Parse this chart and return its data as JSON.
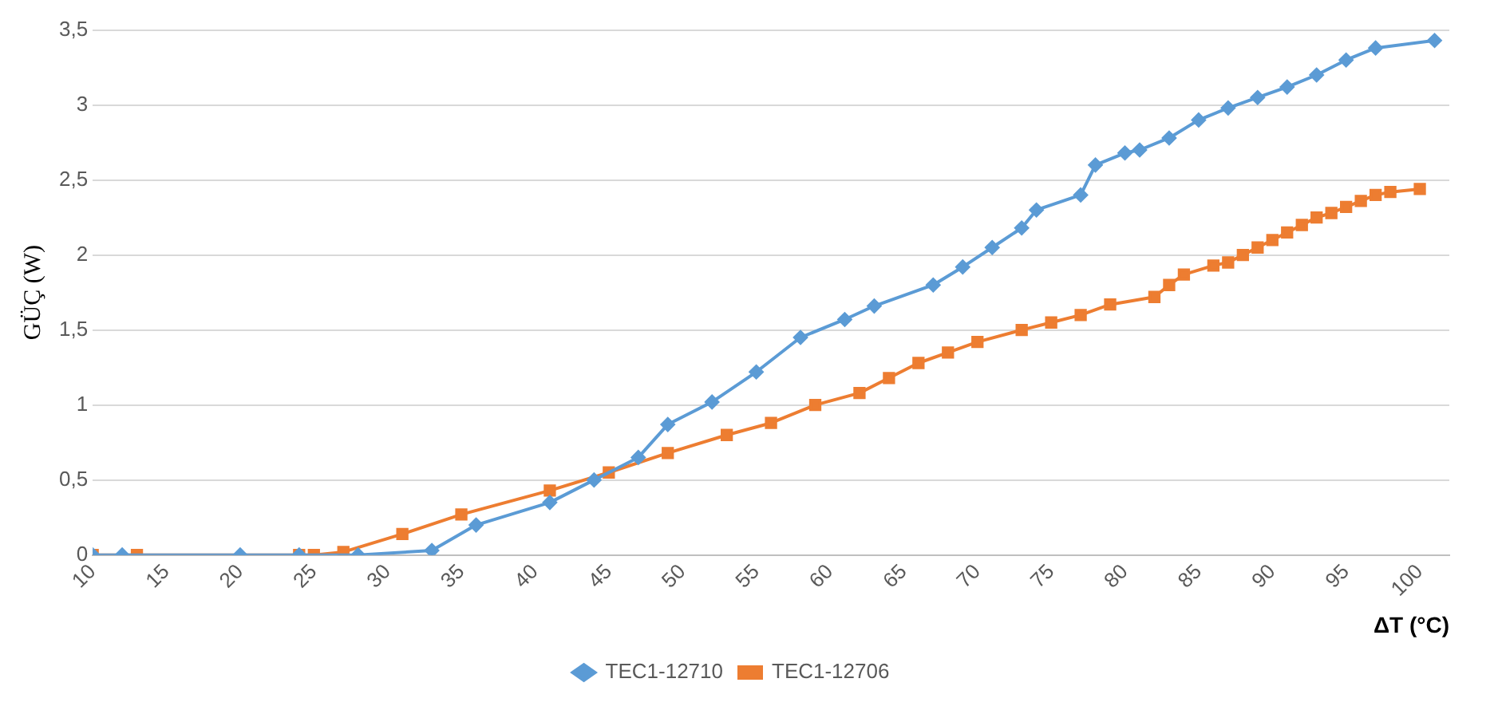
{
  "chart_data": {
    "type": "line",
    "ylabel": "GÜÇ (W)",
    "xlabel": "ΔT (°C)",
    "xlim": [
      10,
      102
    ],
    "xticks": [
      10,
      15,
      20,
      25,
      30,
      35,
      40,
      45,
      50,
      55,
      60,
      65,
      70,
      75,
      80,
      85,
      90,
      95,
      100
    ],
    "ylim": [
      0,
      3.5
    ],
    "yticks": [
      0,
      {
        "value": 0.5,
        "label": "0,5"
      },
      1,
      {
        "value": 1.5,
        "label": "1,5"
      },
      2,
      {
        "value": 2.5,
        "label": "2,5"
      },
      3,
      {
        "value": 3.5,
        "label": "3,5"
      }
    ],
    "grid": "y",
    "legend": "bottom",
    "line_style": "solid",
    "series": [
      {
        "name": "TEC1-12710",
        "color": "#5b9bd5",
        "marker": "diamond",
        "x": [
          10,
          12,
          20,
          24,
          28,
          33,
          36,
          41,
          44,
          47,
          49,
          52,
          55,
          58,
          61,
          63,
          67,
          69,
          71,
          73,
          74,
          77,
          78,
          80,
          81,
          83,
          85,
          87,
          89,
          91,
          93,
          95,
          97,
          101
        ],
        "values": [
          0,
          0,
          0,
          0,
          0,
          0.03,
          0.2,
          0.35,
          0.5,
          0.65,
          0.87,
          1.02,
          1.22,
          1.45,
          1.57,
          1.66,
          1.8,
          1.92,
          2.05,
          2.18,
          2.3,
          2.4,
          2.6,
          2.68,
          2.7,
          2.78,
          2.9,
          2.98,
          3.05,
          3.12,
          3.2,
          3.3,
          3.38,
          3.43
        ]
      },
      {
        "name": "TEC1-12706",
        "color": "#ed7d31",
        "marker": "square",
        "x": [
          10,
          13,
          24,
          25,
          27,
          31,
          35,
          41,
          45,
          49,
          53,
          56,
          59,
          62,
          64,
          66,
          68,
          70,
          73,
          75,
          77,
          79,
          82,
          83,
          84,
          86,
          87,
          88,
          89,
          90,
          91,
          92,
          93,
          94,
          95,
          96,
          97,
          98,
          100
        ],
        "values": [
          0,
          0,
          0,
          0,
          0.02,
          0.14,
          0.27,
          0.43,
          0.55,
          0.68,
          0.8,
          0.88,
          1.0,
          1.08,
          1.18,
          1.28,
          1.35,
          1.42,
          1.5,
          1.55,
          1.6,
          1.67,
          1.72,
          1.8,
          1.87,
          1.93,
          1.95,
          2.0,
          2.05,
          2.1,
          2.15,
          2.2,
          2.25,
          2.28,
          2.32,
          2.36,
          2.4,
          2.42,
          2.44
        ]
      }
    ]
  }
}
